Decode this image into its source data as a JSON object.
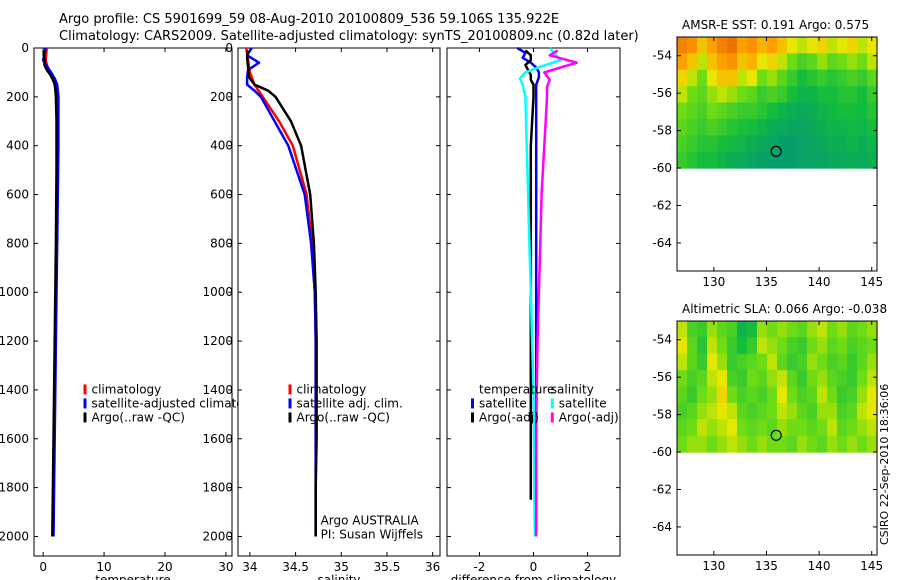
{
  "header": {
    "line1": "Argo profile: CS 5901699_59 08-Aug-2010 20100809_536 59.106S 135.922E",
    "line2": "Climatology: CARS2009. Satellite-adjusted climatology: synTS_20100809.nc (0.82d later)"
  },
  "footer": {
    "stamp": "CSIRO 22-Sep-2010 18:36:06"
  },
  "colors": {
    "climatology": "#ff0000",
    "satellite": "#0000ff",
    "argo": "#000000",
    "diff_temp_sat": "#0000ff",
    "diff_temp_argo": "#000000",
    "diff_sal_sat": "#00ffff",
    "diff_sal_argo": "#ff00ff"
  },
  "chart_data": [
    {
      "id": "temperature",
      "type": "line",
      "xlabel": "temperature",
      "ylabel": "",
      "xlim": [
        -1.5,
        31
      ],
      "ylim": [
        2080,
        0
      ],
      "xticks": [
        0,
        10,
        20,
        30
      ],
      "yticks": [
        0,
        200,
        400,
        600,
        800,
        1000,
        1200,
        1400,
        1600,
        1800,
        2000
      ],
      "legend": {
        "position": "center-right",
        "items": [
          "climatology",
          "satellite-adjusted climatology",
          "Argo(..raw -QC)"
        ]
      },
      "series": [
        {
          "name": "climatology",
          "color_key": "climatology",
          "depth": [
            0,
            25,
            50,
            75,
            100,
            125,
            150,
            175,
            200,
            300,
            400,
            600,
            800,
            1000,
            1200,
            1400,
            1600,
            1800,
            2000
          ],
          "values": [
            0.6,
            0.5,
            0.4,
            0.7,
            1.2,
            1.8,
            2.2,
            2.3,
            2.4,
            2.4,
            2.4,
            2.3,
            2.2,
            2.1,
            2.0,
            1.9,
            1.8,
            1.7,
            1.6
          ]
        },
        {
          "name": "satellite-adjusted climatology",
          "color_key": "satellite",
          "depth": [
            0,
            25,
            50,
            75,
            100,
            125,
            150,
            175,
            200,
            300,
            400,
            600,
            800,
            1000,
            1200,
            1400,
            1600,
            1800,
            2000
          ],
          "values": [
            0.4,
            0.2,
            0.0,
            0.6,
            1.3,
            1.9,
            2.3,
            2.4,
            2.5,
            2.5,
            2.5,
            2.4,
            2.3,
            2.2,
            2.1,
            2.0,
            1.9,
            1.8,
            1.7
          ]
        },
        {
          "name": "Argo(..raw -QC)",
          "color_key": "argo",
          "depth": [
            10,
            30,
            50,
            70,
            90,
            110,
            130,
            150,
            170,
            200,
            300,
            500,
            800,
            1000,
            1200,
            1400,
            1600,
            1800,
            2000
          ],
          "values": [
            0.1,
            0.1,
            0.3,
            0.2,
            0.6,
            1.2,
            1.6,
            1.9,
            2.0,
            2.1,
            2.2,
            2.2,
            2.1,
            2.0,
            1.9,
            1.8,
            1.7,
            1.6,
            1.5
          ]
        }
      ],
      "annotations": []
    },
    {
      "id": "salinity",
      "type": "line",
      "xlabel": "salinity",
      "ylabel": "",
      "xlim": [
        33.87,
        36.08
      ],
      "ylim": [
        2080,
        0
      ],
      "xticks": [
        34,
        34.5,
        35,
        35.5,
        36
      ],
      "yticks": [
        0,
        200,
        400,
        600,
        800,
        1000,
        1200,
        1400,
        1600,
        1800,
        2000
      ],
      "legend": {
        "position": "center-right",
        "items": [
          "climatology",
          "satellite adj. clim.",
          "Argo(..raw -QC)"
        ]
      },
      "series": [
        {
          "name": "climatology",
          "color_key": "climatology",
          "depth": [
            0,
            50,
            100,
            150,
            200,
            300,
            400,
            600,
            800,
            1000,
            1200,
            1400,
            1600,
            1800,
            2000
          ],
          "values": [
            33.96,
            33.98,
            34.0,
            34.05,
            34.14,
            34.32,
            34.47,
            34.62,
            34.68,
            34.71,
            34.72,
            34.72,
            34.72,
            34.72,
            34.72
          ]
        },
        {
          "name": "satellite adj. clim.",
          "color_key": "satellite",
          "depth": [
            0,
            30,
            60,
            90,
            120,
            150,
            175,
            200,
            300,
            400,
            600,
            800,
            1000,
            1200,
            1400,
            1600,
            1800,
            2000
          ],
          "values": [
            34.02,
            33.97,
            34.1,
            33.98,
            33.97,
            33.97,
            34.05,
            34.12,
            34.27,
            34.42,
            34.6,
            34.67,
            34.71,
            34.72,
            34.72,
            34.72,
            34.72,
            34.72
          ]
        },
        {
          "name": "Argo(..raw -QC)",
          "color_key": "argo",
          "depth": [
            10,
            40,
            80,
            120,
            150,
            175,
            200,
            300,
            400,
            600,
            800,
            1000,
            1200,
            1400,
            1600,
            1800,
            2000
          ],
          "values": [
            33.98,
            33.97,
            33.98,
            33.99,
            34.05,
            34.2,
            34.28,
            34.45,
            34.56,
            34.66,
            34.7,
            34.72,
            34.73,
            34.73,
            34.73,
            34.72,
            34.72
          ]
        }
      ],
      "annotations": [
        "Argo AUSTRALIA",
        "PI: Susan Wijffels"
      ]
    },
    {
      "id": "difference",
      "type": "line",
      "xlabel": "difference from climatology",
      "ylabel": "",
      "xlim": [
        -3.2,
        3.2
      ],
      "ylim": [
        2080,
        0
      ],
      "xticks": [
        -2,
        0,
        2
      ],
      "yticks": [
        0,
        200,
        400,
        600,
        800,
        1000,
        1200,
        1400,
        1600,
        1800,
        2000
      ],
      "legend": {
        "position": "center",
        "groups": [
          {
            "title": "temperature",
            "items": [
              "satellite",
              "Argo(-adj)"
            ]
          },
          {
            "title": "salinity",
            "items": [
              "satellite",
              "Argo(-adj)"
            ]
          }
        ]
      },
      "series": [
        {
          "name": "temperature satellite",
          "color_key": "diff_temp_sat",
          "depth": [
            0,
            20,
            40,
            60,
            80,
            100,
            120,
            150,
            200,
            400,
            800,
            1200,
            1600,
            2000
          ],
          "values": [
            -0.6,
            -0.3,
            -0.4,
            -0.1,
            0.1,
            0.2,
            0.2,
            0.1,
            0.1,
            0.1,
            0.1,
            0.1,
            0.1,
            0.1
          ]
        },
        {
          "name": "temperature Argo(-adj)",
          "color_key": "diff_temp_argo",
          "depth": [
            10,
            30,
            50,
            70,
            90,
            110,
            130,
            150,
            200,
            400,
            800,
            1200,
            1600,
            1850
          ],
          "values": [
            -0.3,
            -0.1,
            -0.1,
            -0.3,
            -0.2,
            -0.1,
            -0.1,
            0.0,
            0.0,
            -0.1,
            -0.1,
            -0.1,
            -0.1,
            -0.1
          ]
        },
        {
          "name": "salinity satellite",
          "color_key": "diff_sal_sat",
          "depth": [
            0,
            25,
            50,
            75,
            100,
            125,
            150,
            175,
            200,
            400,
            600,
            800,
            1000,
            1200,
            1400,
            1600,
            1800,
            2000
          ],
          "values": [
            0.6,
            0.8,
            1.0,
            0.3,
            -0.3,
            -0.5,
            -0.4,
            -0.35,
            -0.3,
            -0.25,
            -0.2,
            -0.15,
            -0.1,
            -0.05,
            0.0,
            0.02,
            0.03,
            0.05
          ]
        },
        {
          "name": "salinity Argo(-adj)",
          "color_key": "diff_sal_argo",
          "depth": [
            10,
            30,
            60,
            80,
            100,
            130,
            160,
            200,
            300,
            400,
            600,
            800,
            1000,
            1200,
            1400,
            1600,
            1800,
            2000
          ],
          "values": [
            0.9,
            0.6,
            1.6,
            1.0,
            0.4,
            0.6,
            0.5,
            0.5,
            0.45,
            0.4,
            0.3,
            0.25,
            0.2,
            0.15,
            0.12,
            0.1,
            0.1,
            0.1
          ]
        }
      ],
      "annotations": []
    },
    {
      "id": "sst-map",
      "type": "heatmap",
      "title": "AMSR-E SST: 0.191 Argo: 0.575",
      "xlim": [
        126.5,
        145.5
      ],
      "ylim": [
        -65.5,
        -53
      ],
      "xticks": [
        130,
        135,
        140,
        145
      ],
      "yticks": [
        -54,
        -56,
        -58,
        -60,
        -62,
        -64
      ],
      "data_extent_lat": [
        -60,
        -53
      ],
      "marker": {
        "lon": 135.922,
        "lat": -59.106
      },
      "values": [
        [
          0.9,
          0.85,
          0.7,
          0.8,
          0.9,
          0.95,
          0.8,
          0.85,
          0.75,
          0.8,
          0.7,
          0.6,
          0.55,
          0.6,
          0.65,
          0.55,
          0.6,
          0.65,
          0.55,
          0.6
        ],
        [
          0.8,
          0.7,
          0.55,
          0.7,
          0.8,
          0.85,
          0.7,
          0.75,
          0.6,
          0.65,
          0.55,
          0.45,
          0.35,
          0.4,
          0.5,
          0.4,
          0.45,
          0.5,
          0.45,
          0.55
        ],
        [
          0.65,
          0.55,
          0.45,
          0.6,
          0.7,
          0.7,
          0.55,
          0.6,
          0.45,
          0.5,
          0.4,
          0.3,
          0.2,
          0.25,
          0.3,
          0.25,
          0.3,
          0.35,
          0.3,
          0.4
        ],
        [
          0.55,
          0.45,
          0.4,
          0.5,
          0.55,
          0.5,
          0.45,
          0.4,
          0.3,
          0.35,
          0.3,
          0.2,
          0.15,
          0.15,
          0.2,
          0.2,
          0.25,
          0.25,
          0.2,
          0.3
        ],
        [
          0.45,
          0.4,
          0.35,
          0.45,
          0.4,
          0.35,
          0.3,
          0.3,
          0.25,
          0.2,
          0.15,
          0.12,
          0.1,
          0.12,
          0.15,
          0.18,
          0.2,
          0.2,
          0.18,
          0.25
        ],
        [
          0.4,
          0.35,
          0.3,
          0.35,
          0.3,
          0.25,
          0.22,
          0.2,
          0.15,
          0.12,
          0.1,
          0.08,
          0.08,
          0.1,
          0.12,
          0.15,
          0.15,
          0.18,
          0.15,
          0.2
        ],
        [
          0.35,
          0.3,
          0.25,
          0.25,
          0.2,
          0.18,
          0.15,
          0.12,
          0.1,
          0.08,
          0.05,
          0.05,
          0.06,
          0.08,
          0.1,
          0.12,
          0.12,
          0.15,
          0.12,
          0.15
        ],
        [
          0.3,
          0.25,
          0.2,
          0.2,
          0.15,
          0.12,
          0.1,
          0.08,
          0.06,
          0.05,
          0.04,
          0.05,
          0.06,
          0.07,
          0.08,
          0.1,
          0.1,
          0.12,
          0.1,
          0.12
        ]
      ]
    },
    {
      "id": "sla-map",
      "type": "heatmap",
      "title": "Altimetric SLA: 0.066 Argo: -0.038",
      "xlim": [
        126.5,
        145.5
      ],
      "ylim": [
        -65.5,
        -53
      ],
      "xticks": [
        130,
        135,
        140,
        145
      ],
      "yticks": [
        -54,
        -56,
        -58,
        -60,
        -62,
        -64
      ],
      "data_extent_lat": [
        -60,
        -53
      ],
      "marker": {
        "lon": 135.922,
        "lat": -59.106
      },
      "values": [
        [
          0.55,
          0.35,
          0.3,
          0.5,
          0.4,
          0.35,
          0.15,
          0.2,
          0.5,
          0.45,
          0.5,
          0.45,
          0.4,
          0.5,
          0.55,
          0.45,
          0.5,
          0.4,
          0.45,
          0.5
        ],
        [
          0.6,
          0.4,
          0.25,
          0.55,
          0.45,
          0.3,
          0.2,
          0.3,
          0.55,
          0.5,
          0.45,
          0.35,
          0.3,
          0.45,
          0.5,
          0.4,
          0.45,
          0.35,
          0.4,
          0.45
        ],
        [
          0.55,
          0.4,
          0.3,
          0.6,
          0.5,
          0.3,
          0.35,
          0.4,
          0.45,
          0.55,
          0.4,
          0.3,
          0.35,
          0.5,
          0.45,
          0.35,
          0.4,
          0.3,
          0.4,
          0.5
        ],
        [
          0.45,
          0.35,
          0.4,
          0.55,
          0.6,
          0.35,
          0.3,
          0.45,
          0.4,
          0.5,
          0.55,
          0.4,
          0.3,
          0.45,
          0.5,
          0.4,
          0.35,
          0.3,
          0.45,
          0.55
        ],
        [
          0.4,
          0.3,
          0.45,
          0.5,
          0.65,
          0.45,
          0.35,
          0.4,
          0.35,
          0.45,
          0.6,
          0.45,
          0.35,
          0.4,
          0.55,
          0.45,
          0.3,
          0.35,
          0.5,
          0.6
        ],
        [
          0.35,
          0.4,
          0.5,
          0.55,
          0.6,
          0.55,
          0.4,
          0.35,
          0.4,
          0.45,
          0.55,
          0.5,
          0.4,
          0.35,
          0.5,
          0.5,
          0.35,
          0.4,
          0.55,
          0.6
        ],
        [
          0.4,
          0.45,
          0.55,
          0.5,
          0.55,
          0.6,
          0.45,
          0.4,
          0.45,
          0.4,
          0.5,
          0.45,
          0.45,
          0.4,
          0.45,
          0.55,
          0.4,
          0.45,
          0.5,
          0.55
        ],
        [
          0.45,
          0.5,
          0.5,
          0.45,
          0.5,
          0.55,
          0.5,
          0.45,
          0.5,
          0.45,
          0.45,
          0.4,
          0.5,
          0.45,
          0.4,
          0.5,
          0.45,
          0.5,
          0.45,
          0.5
        ]
      ]
    }
  ]
}
